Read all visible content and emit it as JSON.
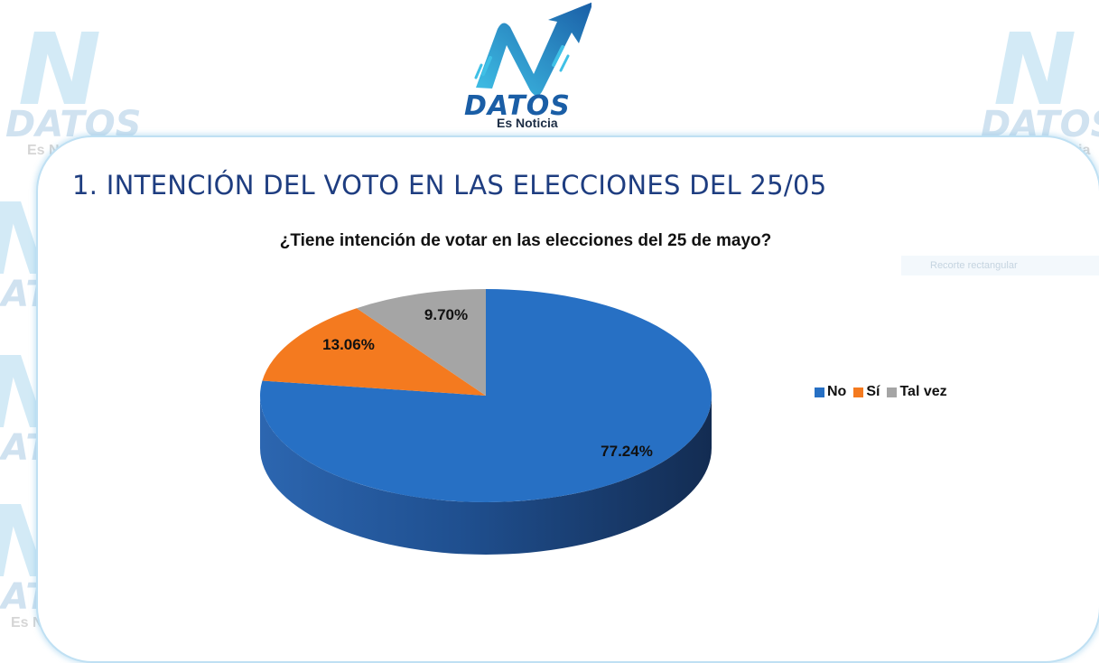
{
  "brand": {
    "word": "DATOS",
    "tagline": "Es Noticia"
  },
  "page_title": "1. INTENCIÓN DEL VOTO EN LAS ELECCIONES DEL 25/05",
  "ghost_label": "Recorte rectangular",
  "chart_data": {
    "type": "pie",
    "title": "¿Tiene intención de votar en las elecciones  del 25 de mayo?",
    "categories": [
      "No",
      "Sí",
      "Tal vez"
    ],
    "values": [
      77.24,
      13.06,
      9.7
    ],
    "labels": [
      "77.24%",
      "13.06%",
      "9.70%"
    ],
    "colors": [
      "#2770c4",
      "#f47a1f",
      "#a5a5a5"
    ],
    "legend_position": "right",
    "style": "3d"
  },
  "legend": [
    {
      "label": "No",
      "color": "#2770c4"
    },
    {
      "label": "Sí",
      "color": "#f47a1f"
    },
    {
      "label": "Tal vez",
      "color": "#a5a5a5"
    }
  ]
}
